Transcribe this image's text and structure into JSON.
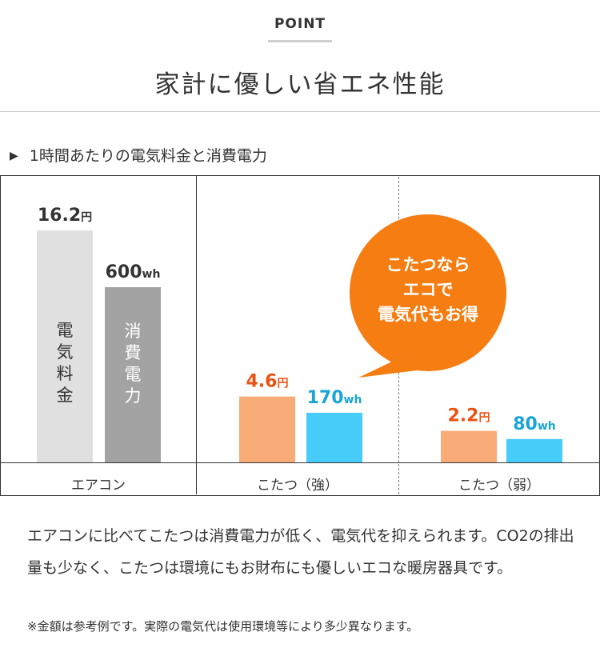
{
  "header": {
    "point_label": "POINT",
    "title": "家計に優しい省エネ性能"
  },
  "section": {
    "heading": "1時間あたりの電気料金と消費電力"
  },
  "chart_data": {
    "type": "bar",
    "groups": [
      {
        "category": "エアコン",
        "cost": {
          "value": 16.2,
          "unit": "円",
          "label_number": "16.2",
          "bar_text": "電気料金",
          "color": "#e0e0e0"
        },
        "power": {
          "value": 600,
          "unit": "wh",
          "label_number": "600",
          "bar_text": "消費電力",
          "color": "#a3a3a3"
        }
      },
      {
        "category": "こたつ（強）",
        "cost": {
          "value": 4.6,
          "unit": "円",
          "label_number": "4.6",
          "color": "#f8ab77"
        },
        "power": {
          "value": 170,
          "unit": "wh",
          "label_number": "170",
          "color": "#47cbf8"
        }
      },
      {
        "category": "こたつ（弱）",
        "cost": {
          "value": 2.2,
          "unit": "円",
          "label_number": "2.2",
          "color": "#f8ab77"
        },
        "power": {
          "value": 80,
          "unit": "wh",
          "label_number": "80",
          "color": "#47cbf8"
        }
      }
    ],
    "label_colors": {
      "cost_highlight": "#e95312",
      "power_highlight": "#1aa5d6",
      "default": "#333333"
    },
    "cost_axis_max": 16.2,
    "power_axis_max": 600,
    "grid": false
  },
  "callout": {
    "lines": [
      "こたつなら",
      "エコで",
      "電気代もお得"
    ],
    "color": "#f57d12"
  },
  "description": {
    "body": "エアコンに比べてこたつは消費電力が低く、電気代を抑えられます。CO2の排出量も少なく、こたつは環境にもお財布にも優しいエコな暖房器具です。",
    "note": "※金額は参考例です。実際の電気代は使用環境等により多少異なります。"
  }
}
